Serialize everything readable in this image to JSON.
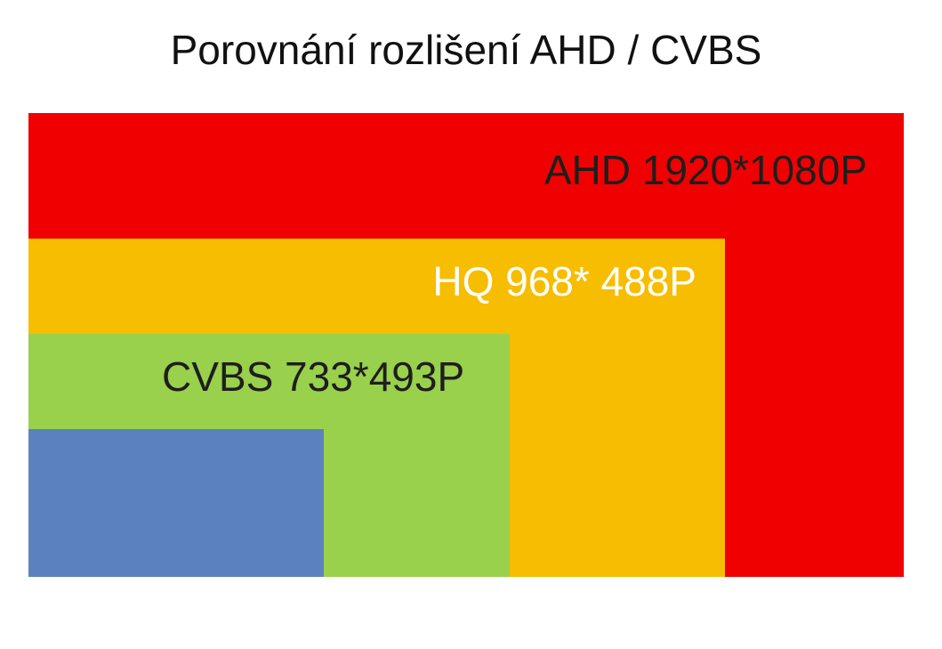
{
  "header": {
    "title": "Porovnání rozlišení AHD / CVBS"
  },
  "nodes": [
    {
      "label": "AHD 1920*1080P"
    },
    {
      "label": "HQ 968* 488P"
    },
    {
      "label": "CVBS 733*493P"
    }
  ]
}
